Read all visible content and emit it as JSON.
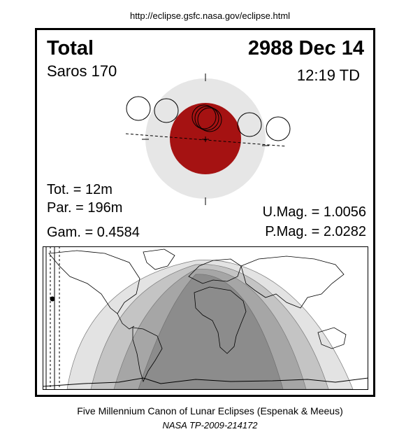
{
  "url": "http://eclipse.gsfc.nasa.gov/eclipse.html",
  "eclipse": {
    "type": "Total",
    "saros": "Saros 170",
    "date": "2988 Dec 14",
    "time": "12:19 TD",
    "tot": "Tot. =  12m",
    "par": "Par. = 196m",
    "gam": "Gam. = 0.4584",
    "umag": "U.Mag. = 1.0056",
    "pmag": "P.Mag. = 2.0282"
  },
  "credit": {
    "line1": "Five Millennium Canon of Lunar Eclipses (Espenak & Meeus)",
    "line2": "NASA TP-2009-214172"
  },
  "colors": {
    "penumbra": "#e6e6e6",
    "umbra": "#a51212",
    "map_zone_total": "#8c8c8c",
    "map_zone_dark": "#a6a6a6",
    "map_zone_mid": "#c4c4c4",
    "map_zone_light": "#e3e3e3"
  }
}
